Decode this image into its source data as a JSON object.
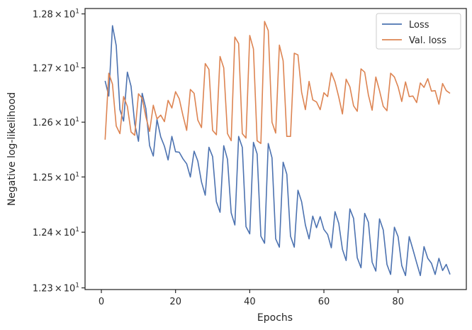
{
  "chart_data": {
    "type": "line",
    "xlabel": "Epochs",
    "ylabel": "Negative log-likelihood",
    "xlim": [
      -4.4,
      98.4
    ],
    "ylim": [
      12.297,
      12.81
    ],
    "y_scale": "log",
    "grid": false,
    "legend_position": "top-right",
    "x_ticks": [
      {
        "value": 0,
        "label": "0"
      },
      {
        "value": 20,
        "label": "20"
      },
      {
        "value": 40,
        "label": "40"
      },
      {
        "value": 60,
        "label": "60"
      },
      {
        "value": 80,
        "label": "80"
      }
    ],
    "y_ticks": [
      {
        "value": 12.3,
        "mantissa": "1.23",
        "times": "×",
        "base": "10",
        "exp": "1"
      },
      {
        "value": 12.4,
        "mantissa": "1.24",
        "times": "×",
        "base": "10",
        "exp": "1"
      },
      {
        "value": 12.5,
        "mantissa": "1.25",
        "times": "×",
        "base": "10",
        "exp": "1"
      },
      {
        "value": 12.6,
        "mantissa": "1.26",
        "times": "×",
        "base": "10",
        "exp": "1"
      },
      {
        "value": 12.7,
        "mantissa": "1.27",
        "times": "×",
        "base": "10",
        "exp": "1"
      },
      {
        "value": 12.8,
        "mantissa": "1.28",
        "times": "×",
        "base": "10",
        "exp": "1"
      }
    ],
    "x": [
      1,
      2,
      3,
      4,
      5,
      6,
      7,
      8,
      9,
      10,
      11,
      12,
      13,
      14,
      15,
      16,
      17,
      18,
      19,
      20,
      21,
      22,
      23,
      24,
      25,
      26,
      27,
      28,
      29,
      30,
      31,
      32,
      33,
      34,
      35,
      36,
      37,
      38,
      39,
      40,
      41,
      42,
      43,
      44,
      45,
      46,
      47,
      48,
      49,
      50,
      51,
      52,
      53,
      54,
      55,
      56,
      57,
      58,
      59,
      60,
      61,
      62,
      63,
      64,
      65,
      66,
      67,
      68,
      69,
      70,
      71,
      72,
      73,
      74,
      75,
      76,
      77,
      78,
      79,
      80,
      81,
      82,
      83,
      84,
      85,
      86,
      87,
      88,
      89,
      90,
      91,
      92,
      93,
      94
    ],
    "series": [
      {
        "name": "Loss",
        "color": "#4c72b0",
        "values": [
          12.676,
          12.648,
          12.778,
          12.741,
          12.623,
          12.602,
          12.692,
          12.666,
          12.597,
          12.565,
          12.653,
          12.625,
          12.557,
          12.538,
          12.605,
          12.573,
          12.556,
          12.531,
          12.574,
          12.546,
          12.545,
          12.533,
          12.524,
          12.5,
          12.547,
          12.529,
          12.491,
          12.467,
          12.554,
          12.537,
          12.455,
          12.436,
          12.557,
          12.532,
          12.435,
          12.413,
          12.574,
          12.554,
          12.41,
          12.397,
          12.563,
          12.542,
          12.393,
          12.38,
          12.561,
          12.535,
          12.388,
          12.373,
          12.527,
          12.505,
          12.393,
          12.373,
          12.476,
          12.455,
          12.413,
          12.388,
          12.429,
          12.408,
          12.428,
          12.405,
          12.396,
          12.372,
          12.437,
          12.416,
          12.369,
          12.349,
          12.442,
          12.425,
          12.354,
          12.336,
          12.434,
          12.418,
          12.346,
          12.33,
          12.424,
          12.404,
          12.342,
          12.324,
          12.409,
          12.392,
          12.34,
          12.322,
          12.392,
          12.369,
          12.345,
          12.322,
          12.374,
          12.353,
          12.344,
          12.324,
          12.353,
          12.331,
          12.342,
          12.324
        ]
      },
      {
        "name": "Val. loss",
        "color": "#dd8452",
        "values": [
          12.568,
          12.69,
          12.67,
          12.593,
          12.579,
          12.647,
          12.629,
          12.582,
          12.576,
          12.652,
          12.644,
          12.61,
          12.583,
          12.631,
          12.606,
          12.613,
          12.601,
          12.64,
          12.626,
          12.656,
          12.643,
          12.612,
          12.585,
          12.66,
          12.653,
          12.604,
          12.59,
          12.708,
          12.697,
          12.585,
          12.577,
          12.721,
          12.7,
          12.579,
          12.566,
          12.757,
          12.745,
          12.579,
          12.571,
          12.76,
          12.735,
          12.566,
          12.561,
          12.786,
          12.769,
          12.6,
          12.58,
          12.742,
          12.713,
          12.574,
          12.574,
          12.727,
          12.724,
          12.655,
          12.623,
          12.675,
          12.641,
          12.637,
          12.623,
          12.654,
          12.647,
          12.691,
          12.674,
          12.646,
          12.615,
          12.679,
          12.665,
          12.63,
          12.62,
          12.698,
          12.692,
          12.65,
          12.622,
          12.683,
          12.658,
          12.629,
          12.621,
          12.69,
          12.683,
          12.665,
          12.638,
          12.674,
          12.647,
          12.648,
          12.636,
          12.672,
          12.664,
          12.68,
          12.657,
          12.658,
          12.633,
          12.671,
          12.658,
          12.653
        ]
      }
    ]
  }
}
